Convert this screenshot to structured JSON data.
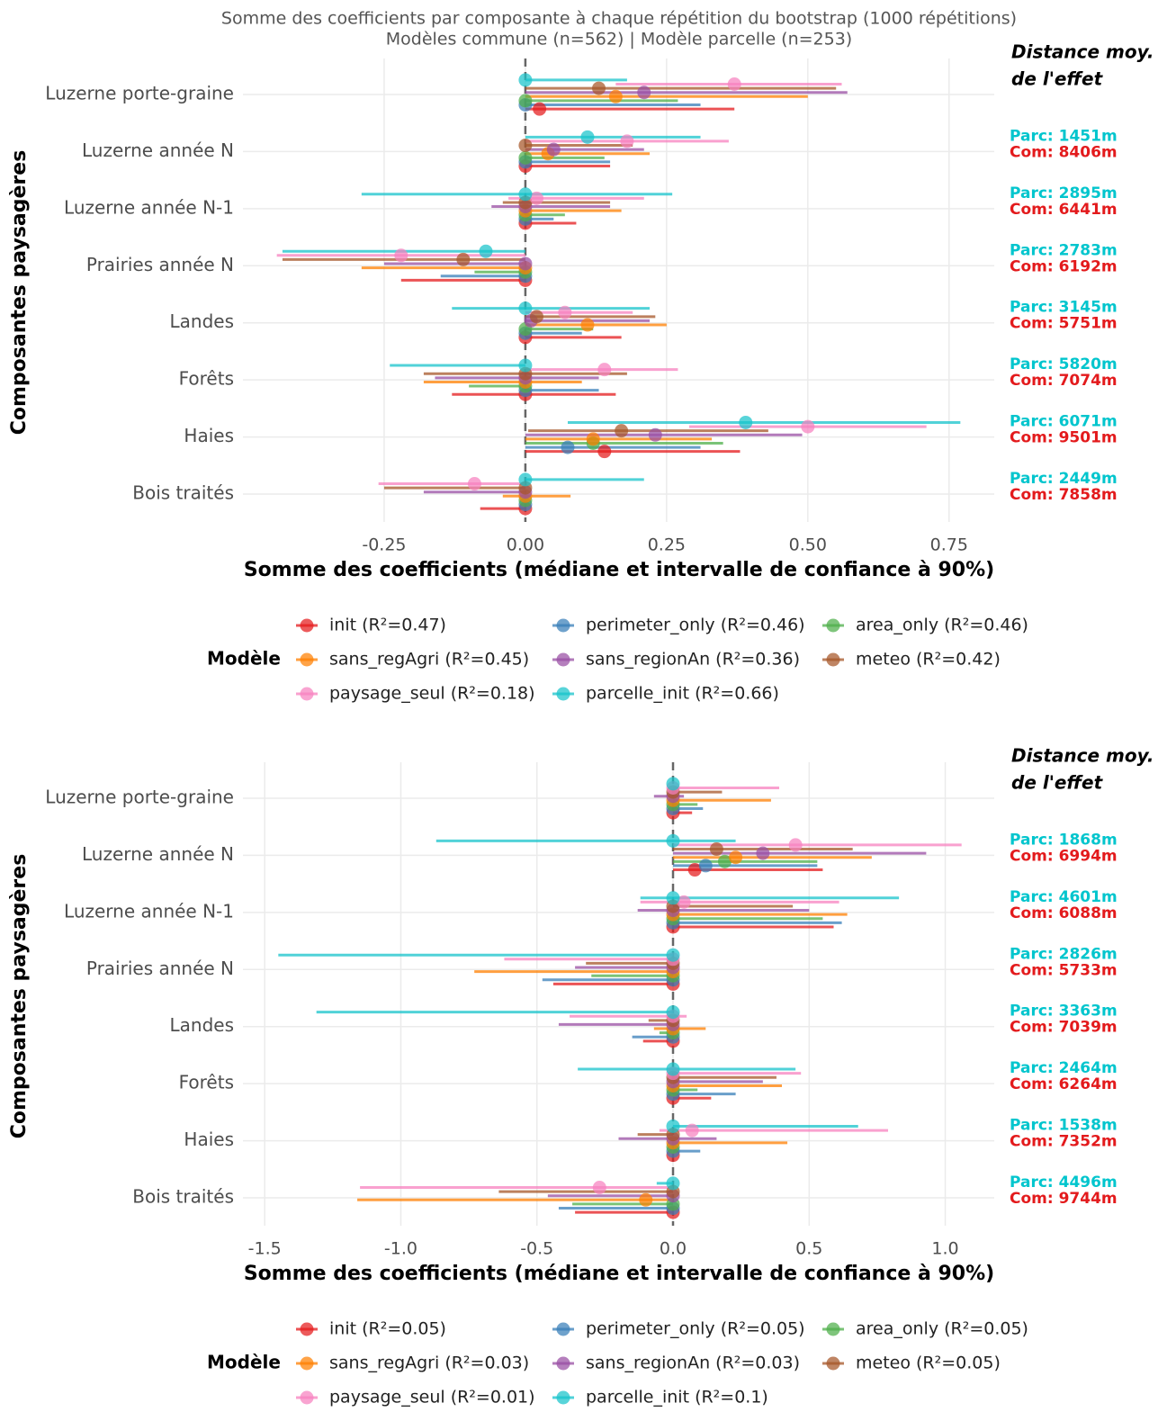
{
  "chart_data": [
    {
      "type": "forest",
      "title": "Somme des coefficients par composante à chaque répétition du bootstrap (1000 répétitions)",
      "subtitle": "Modèles commune (n=562) | Modèle parcelle (n=253)",
      "x_label": "Somme des coefficients (médiane et intervalle de confiance à 90%)",
      "y_label": "Composantes paysagères",
      "categories": [
        "Luzerne porte-graine",
        "Luzerne année N",
        "Luzerne année N-1",
        "Prairies année N",
        "Landes",
        "Forêts",
        "Haies",
        "Bois traités"
      ],
      "xlim": [
        -0.5,
        0.83
      ],
      "xticks": [
        {
          "value": -0.25,
          "label": "-0.25"
        },
        {
          "value": 0,
          "label": "0.00"
        },
        0.25,
        {
          "value": 0.5,
          "label": "0.50"
        },
        0.75
      ],
      "vline": 0,
      "grid": true,
      "annotation": [
        "Distance moy.",
        "de l'effet"
      ],
      "distance_parc": [
        null,
        "Parc: 1451m",
        "Parc: 2895m",
        "Parc: 2783m",
        "Parc: 3145m",
        "Parc: 5820m",
        "Parc: 6071m",
        "Parc: 2449m"
      ],
      "distance_com": [
        null,
        "Com: 8406m",
        "Com: 6441m",
        "Com: 6192m",
        "Com: 5751m",
        "Com: 7074m",
        "Com: 9501m",
        "Com: 7858m"
      ],
      "legend_title": "Modèle",
      "series": [
        {
          "name": "init (R²=0.47)",
          "color": "#e41a1c",
          "values": [
            0.025,
            0,
            0,
            0,
            0,
            0,
            0.14,
            0
          ],
          "lower": [
            0,
            0,
            0,
            -0.22,
            0,
            -0.13,
            0,
            -0.08
          ],
          "upper": [
            0.37,
            0.15,
            0.09,
            0,
            0.17,
            0.16,
            0.38,
            0
          ]
        },
        {
          "name": "perimeter_only (R²=0.46)",
          "color": "#377eb8",
          "values": [
            0,
            0,
            0,
            0,
            0,
            0,
            0.075,
            0
          ],
          "lower": [
            0,
            0,
            0,
            -0.15,
            0,
            0,
            0,
            0
          ],
          "upper": [
            0.31,
            0.15,
            0.05,
            0,
            0.1,
            0.13,
            0.31,
            0
          ]
        },
        {
          "name": "area_only (R²=0.46)",
          "color": "#4daf4a",
          "values": [
            0,
            0,
            0,
            0,
            0,
            0,
            0.12,
            0
          ],
          "lower": [
            0,
            0,
            0,
            -0.09,
            0,
            -0.1,
            0,
            0
          ],
          "upper": [
            0.27,
            0.14,
            0.07,
            0,
            0.12,
            0,
            0.35,
            0
          ]
        },
        {
          "name": "sans_regAgri (R²=0.45)",
          "color": "#ff7f00",
          "values": [
            0.16,
            0.04,
            0,
            0,
            0.11,
            0,
            0.12,
            0
          ],
          "lower": [
            0,
            0,
            0,
            -0.29,
            0,
            -0.18,
            0,
            -0.04
          ],
          "upper": [
            0.5,
            0.22,
            0.17,
            0,
            0.25,
            0.1,
            0.33,
            0.08
          ]
        },
        {
          "name": "sans_regionAn (R²=0.36)",
          "color": "#984ea3",
          "values": [
            0.21,
            0.05,
            0,
            0,
            0.01,
            0,
            0.23,
            0
          ],
          "lower": [
            0,
            0,
            -0.06,
            -0.25,
            0,
            -0.16,
            0,
            -0.18
          ],
          "upper": [
            0.57,
            0.21,
            0.15,
            0,
            0.22,
            0.13,
            0.49,
            0
          ]
        },
        {
          "name": "meteo (R²=0.42)",
          "color": "#a65628",
          "values": [
            0.13,
            0,
            0,
            -0.11,
            0.02,
            0,
            0.17,
            0
          ],
          "lower": [
            0,
            0,
            -0.04,
            -0.43,
            0,
            -0.18,
            0.005,
            -0.25
          ],
          "upper": [
            0.55,
            0.19,
            0.15,
            0,
            0.23,
            0.18,
            0.43,
            0
          ]
        },
        {
          "name": "paysage_seul (R²=0.18)",
          "color": "#f781bf",
          "values": [
            0.37,
            0.18,
            0.02,
            -0.22,
            0.07,
            0.14,
            0.5,
            -0.09
          ],
          "lower": [
            0.16,
            0,
            -0.03,
            -0.44,
            0,
            0,
            0.29,
            -0.26
          ],
          "upper": [
            0.56,
            0.36,
            0.21,
            0,
            0.19,
            0.27,
            0.71,
            0
          ]
        },
        {
          "name": "parcelle_init (R²=0.66)",
          "color": "#17c3cb",
          "values": [
            0,
            0.11,
            0,
            -0.07,
            0,
            0,
            0.39,
            0
          ],
          "lower": [
            0,
            0,
            -0.29,
            -0.43,
            -0.13,
            -0.24,
            0.075,
            0
          ],
          "upper": [
            0.18,
            0.31,
            0.26,
            0,
            0.22,
            0,
            0.77,
            0.21
          ]
        }
      ]
    },
    {
      "type": "forest",
      "x_label": "Somme des coefficients (médiane et intervalle de confiance à 90%)",
      "y_label": "Composantes paysagères",
      "categories": [
        "Luzerne porte-graine",
        "Luzerne année N",
        "Luzerne année N-1",
        "Prairies année N",
        "Landes",
        "Forêts",
        "Haies",
        "Bois traités"
      ],
      "xlim": [
        -1.58,
        1.18
      ],
      "xticks": [
        -1.5,
        {
          "value": -1,
          "label": "-1.0"
        },
        -0.5,
        {
          "value": 0,
          "label": "0.0"
        },
        0.5,
        {
          "value": 1,
          "label": "1.0"
        }
      ],
      "vline": 0,
      "grid": true,
      "annotation": [
        "Distance moy.",
        "de l'effet"
      ],
      "distance_parc": [
        null,
        "Parc: 1868m",
        "Parc: 4601m",
        "Parc: 2826m",
        "Parc: 3363m",
        "Parc: 2464m",
        "Parc: 1538m",
        "Parc: 4496m"
      ],
      "distance_com": [
        null,
        "Com: 6994m",
        "Com: 6088m",
        "Com: 5733m",
        "Com: 7039m",
        "Com: 6264m",
        "Com: 7352m",
        "Com: 9744m"
      ],
      "legend_title": "Modèle",
      "series": [
        {
          "name": "init (R²=0.05)",
          "color": "#e41a1c",
          "values": [
            0,
            0.08,
            0,
            0,
            0,
            0,
            0,
            0
          ],
          "lower": [
            0,
            0,
            0,
            -0.44,
            -0.11,
            0,
            0,
            -0.36
          ],
          "upper": [
            0.07,
            0.55,
            0.59,
            0,
            0,
            0.14,
            0,
            0
          ]
        },
        {
          "name": "perimeter_only (R²=0.05)",
          "color": "#377eb8",
          "values": [
            0,
            0.12,
            0,
            0,
            0,
            0,
            0,
            0
          ],
          "lower": [
            0,
            0,
            0,
            -0.48,
            -0.15,
            0,
            0,
            -0.42
          ],
          "upper": [
            0.11,
            0.53,
            0.62,
            0,
            0,
            0.23,
            0.1,
            0
          ]
        },
        {
          "name": "area_only (R²=0.05)",
          "color": "#4daf4a",
          "values": [
            0,
            0.19,
            0,
            0,
            0,
            0,
            0,
            0
          ],
          "lower": [
            0,
            0,
            0,
            -0.3,
            -0.05,
            0,
            0,
            -0.37
          ],
          "upper": [
            0.09,
            0.53,
            0.55,
            0,
            0,
            0.09,
            0,
            0
          ]
        },
        {
          "name": "sans_regAgri (R²=0.03)",
          "color": "#ff7f00",
          "values": [
            0,
            0.23,
            0,
            0,
            0,
            0,
            0,
            -0.1
          ],
          "lower": [
            0,
            0,
            0,
            -0.73,
            -0.07,
            0,
            0,
            -1.16
          ],
          "upper": [
            0.36,
            0.73,
            0.64,
            0,
            0.12,
            0.4,
            0.42,
            0
          ]
        },
        {
          "name": "sans_regionAn (R²=0.03)",
          "color": "#984ea3",
          "values": [
            0,
            0.33,
            0,
            0,
            0,
            0,
            0,
            0
          ],
          "lower": [
            -0.07,
            0,
            -0.13,
            -0.36,
            -0.42,
            0,
            -0.2,
            -0.46
          ],
          "upper": [
            0.04,
            0.93,
            0.5,
            0,
            0,
            0.33,
            0.16,
            0
          ]
        },
        {
          "name": "meteo (R²=0.05)",
          "color": "#a65628",
          "values": [
            0,
            0.16,
            0,
            0,
            0,
            0,
            0,
            0
          ],
          "lower": [
            0,
            0,
            0,
            -0.32,
            -0.09,
            0,
            -0.13,
            -0.64
          ],
          "upper": [
            0.18,
            0.66,
            0.44,
            0,
            0,
            0.38,
            0,
            0
          ]
        },
        {
          "name": "paysage_seul (R²=0.01)",
          "color": "#f781bf",
          "values": [
            0,
            0.45,
            0.04,
            0,
            0,
            0,
            0.07,
            -0.27
          ],
          "lower": [
            0,
            0,
            -0.12,
            -0.62,
            -0.38,
            0,
            -0.05,
            -1.15
          ],
          "upper": [
            0.39,
            1.06,
            0.61,
            0,
            0.05,
            0.47,
            0.79,
            0
          ]
        },
        {
          "name": "parcelle_init (R²=0.1)",
          "color": "#17c3cb",
          "values": [
            0,
            0,
            0,
            0,
            0,
            0,
            0,
            0
          ],
          "lower": [
            0,
            -0.87,
            -0.12,
            -1.45,
            -1.31,
            -0.35,
            0,
            -0.06
          ],
          "upper": [
            0,
            0.23,
            0.83,
            0,
            0,
            0.45,
            0.68,
            0
          ]
        }
      ]
    }
  ]
}
